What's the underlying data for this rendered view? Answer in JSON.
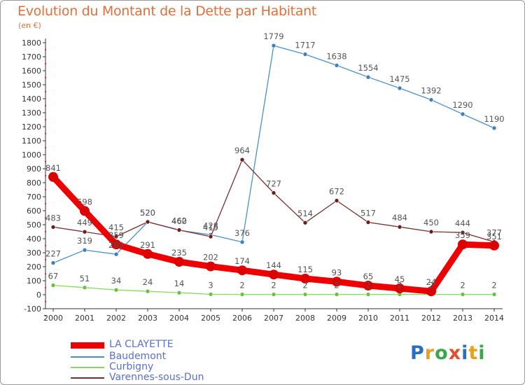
{
  "chart_data": {
    "type": "line",
    "title": "Evolution du Montant de la Dette par Habitant",
    "unit_label": "(en €)",
    "x": [
      2000,
      2001,
      2002,
      2003,
      2004,
      2005,
      2006,
      2007,
      2008,
      2009,
      2010,
      2011,
      2012,
      2013,
      2014
    ],
    "ylim": [
      -100,
      1800
    ],
    "yticks": [
      -100,
      0,
      100,
      200,
      300,
      400,
      500,
      600,
      700,
      800,
      900,
      1000,
      1100,
      1200,
      1300,
      1400,
      1500,
      1600,
      1700,
      1800
    ],
    "grid": false,
    "legend_position": "bottom-left",
    "series": [
      {
        "name": "Baudemont",
        "color": "#4a90c8",
        "point_color": "#3f7fba",
        "label_color": "#555555",
        "values": [
          227,
          319,
          289,
          520,
          460,
          428,
          376,
          1779,
          1717,
          1638,
          1554,
          1475,
          1392,
          1290,
          1190
        ]
      },
      {
        "name": "Curbigny",
        "color": "#88d860",
        "point_color": "#6cc040",
        "label_color": "#555555",
        "values": [
          67,
          51,
          34,
          24,
          14,
          3,
          2,
          2,
          2,
          2,
          2,
          2,
          2,
          2,
          2
        ]
      },
      {
        "name": "Varennes-sous-Dun",
        "color": "#7a2e2e",
        "point_color": "#6b1e1e",
        "label_color": "#555555",
        "values": [
          483,
          449,
          415,
          520,
          462,
          415,
          964,
          727,
          514,
          672,
          517,
          484,
          450,
          444,
          377
        ]
      },
      {
        "name": "LA CLAYETTE",
        "color": "#ee0000",
        "point_color": "#dd0000",
        "label_color": "#555555",
        "values": [
          841,
          598,
          359,
          291,
          235,
          202,
          174,
          144,
          115,
          93,
          65,
          45,
          24,
          359,
          351
        ]
      }
    ]
  },
  "legend": {
    "items": [
      {
        "label": "LA CLAYETTE",
        "color": "#ee0000"
      },
      {
        "label": "Baudemont",
        "color": "#4a90c8"
      },
      {
        "label": "Curbigny",
        "color": "#88d860"
      },
      {
        "label": "Varennes-sous-Dun",
        "color": "#7a2e2e"
      }
    ]
  },
  "logo": {
    "text": "Proxiti",
    "colors": [
      "#2a6fbf",
      "#e8a020",
      "#3aa84a",
      "#e05030",
      "#2a6fbf",
      "#e8a020",
      "#3aa84a"
    ]
  }
}
